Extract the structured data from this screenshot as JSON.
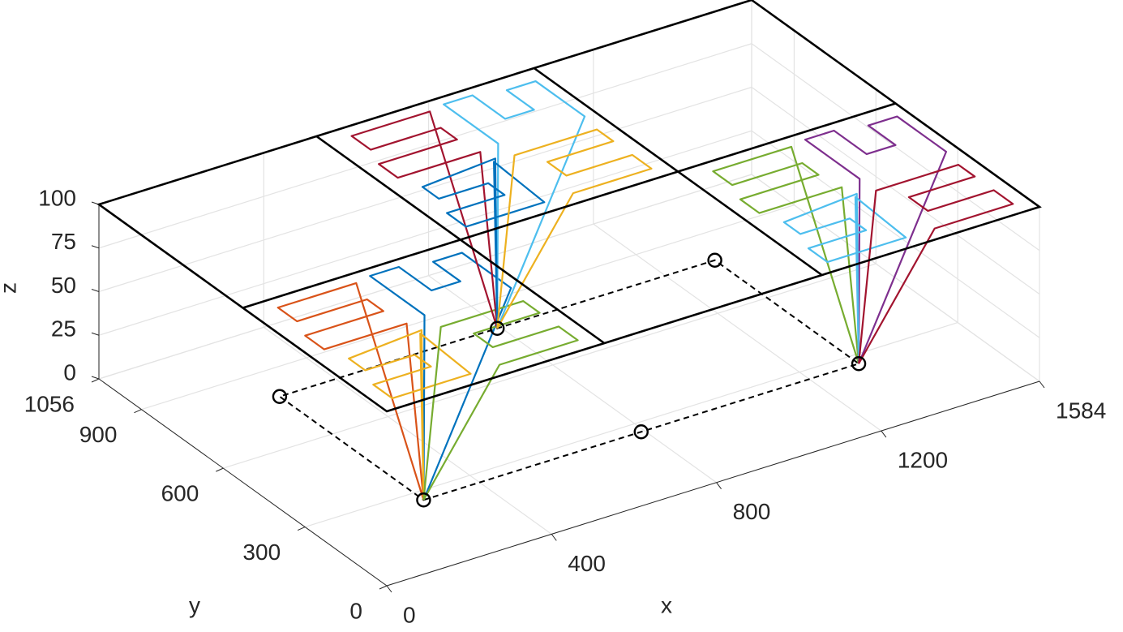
{
  "chart_data": {
    "type": "line3d",
    "xlabel": "x",
    "ylabel": "y",
    "zlabel": "z",
    "xlim": [
      0,
      1584
    ],
    "ylim": [
      0,
      1056
    ],
    "zlim": [
      0,
      100
    ],
    "xticks": [
      0,
      400,
      800,
      1200,
      1584
    ],
    "yticks": [
      0,
      300,
      600,
      900,
      1056
    ],
    "zticks": [
      0,
      25,
      50,
      75,
      100
    ],
    "grid": true,
    "partition": {
      "x": [
        528,
        1056
      ],
      "y": [
        528
      ]
    },
    "depots": {
      "color": "#000000",
      "x": [
        264,
        792,
        1320,
        1320,
        792,
        264
      ],
      "y": [
        264,
        264,
        264,
        792,
        792,
        792
      ],
      "z": [
        0,
        0,
        0,
        0,
        0,
        0
      ]
    },
    "series": [
      {
        "color": "#0072BD",
        "x": [
          264,
          290,
          290,
          360,
          360,
          430,
          430,
          500,
          500,
          264
        ],
        "y": [
          264,
          300,
          500,
          500,
          380,
          380,
          480,
          480,
          300,
          264
        ],
        "z": [
          0,
          100,
          100,
          100,
          100,
          100,
          100,
          100,
          100,
          0
        ]
      },
      {
        "color": "#D95319",
        "x": [
          264,
          240,
          40,
          40,
          230,
          230,
          60,
          60,
          250,
          264
        ],
        "y": [
          264,
          290,
          290,
          360,
          360,
          420,
          420,
          490,
          490,
          264
        ],
        "z": [
          0,
          100,
          100,
          100,
          100,
          100,
          100,
          100,
          100,
          0
        ]
      },
      {
        "color": "#EDB120",
        "x": [
          264,
          240,
          230,
          40,
          40,
          180,
          180,
          60,
          60,
          250,
          264
        ],
        "y": [
          264,
          240,
          40,
          40,
          110,
          110,
          170,
          170,
          230,
          250,
          264
        ],
        "z": [
          0,
          100,
          100,
          100,
          100,
          100,
          100,
          100,
          100,
          100,
          0
        ]
      },
      {
        "color": "#77AC30",
        "x": [
          264,
          290,
          490,
          490,
          330,
          330,
          490,
          490,
          300,
          264
        ],
        "y": [
          264,
          240,
          240,
          180,
          180,
          110,
          110,
          40,
          40,
          264
        ],
        "z": [
          0,
          100,
          100,
          100,
          100,
          100,
          100,
          100,
          100,
          0
        ]
      },
      {
        "color": "#4DBEEE",
        "x": [
          792,
          818,
          818,
          888,
          888,
          958,
          958,
          1028,
          1028,
          792
        ],
        "y": [
          792,
          828,
          1028,
          1028,
          908,
          908,
          1008,
          1008,
          828,
          792
        ],
        "z": [
          0,
          100,
          100,
          100,
          100,
          100,
          100,
          100,
          100,
          0
        ]
      },
      {
        "color": "#A2142F",
        "x": [
          792,
          768,
          568,
          568,
          758,
          758,
          588,
          588,
          778,
          792
        ],
        "y": [
          792,
          818,
          818,
          888,
          888,
          948,
          948,
          1018,
          1018,
          792
        ],
        "z": [
          0,
          100,
          100,
          100,
          100,
          100,
          100,
          100,
          100,
          0
        ]
      },
      {
        "color": "#0072BD",
        "x": [
          792,
          768,
          758,
          568,
          568,
          708,
          708,
          588,
          588,
          778,
          792
        ],
        "y": [
          792,
          768,
          568,
          568,
          638,
          638,
          698,
          698,
          758,
          778,
          792
        ],
        "z": [
          0,
          100,
          100,
          100,
          100,
          100,
          100,
          100,
          100,
          100,
          0
        ]
      },
      {
        "color": "#EDB120",
        "x": [
          792,
          818,
          1018,
          1018,
          858,
          858,
          1018,
          1018,
          828,
          792
        ],
        "y": [
          792,
          768,
          768,
          708,
          708,
          638,
          638,
          568,
          568,
          792
        ],
        "z": [
          0,
          100,
          100,
          100,
          100,
          100,
          100,
          100,
          100,
          0
        ]
      },
      {
        "color": "#7E2F8E",
        "x": [
          1320,
          1346,
          1346,
          1416,
          1416,
          1486,
          1486,
          1556,
          1556,
          1320
        ],
        "y": [
          264,
          300,
          500,
          500,
          380,
          380,
          480,
          480,
          300,
          264
        ],
        "z": [
          0,
          100,
          100,
          100,
          100,
          100,
          100,
          100,
          100,
          0
        ]
      },
      {
        "color": "#77AC30",
        "x": [
          1320,
          1296,
          1096,
          1096,
          1286,
          1286,
          1116,
          1116,
          1306,
          1320
        ],
        "y": [
          264,
          290,
          290,
          360,
          360,
          420,
          420,
          490,
          490,
          264
        ],
        "z": [
          0,
          100,
          100,
          100,
          100,
          100,
          100,
          100,
          100,
          0
        ]
      },
      {
        "color": "#4DBEEE",
        "x": [
          1320,
          1296,
          1286,
          1096,
          1096,
          1236,
          1236,
          1116,
          1116,
          1306,
          1320
        ],
        "y": [
          264,
          240,
          40,
          40,
          110,
          110,
          170,
          170,
          230,
          250,
          264
        ],
        "z": [
          0,
          100,
          100,
          100,
          100,
          100,
          100,
          100,
          100,
          100,
          0
        ]
      },
      {
        "color": "#A2142F",
        "x": [
          1320,
          1346,
          1546,
          1546,
          1386,
          1386,
          1546,
          1546,
          1356,
          1320
        ],
        "y": [
          264,
          240,
          240,
          180,
          180,
          110,
          110,
          40,
          40,
          264
        ],
        "z": [
          0,
          100,
          100,
          100,
          100,
          100,
          100,
          100,
          100,
          0
        ]
      }
    ]
  }
}
